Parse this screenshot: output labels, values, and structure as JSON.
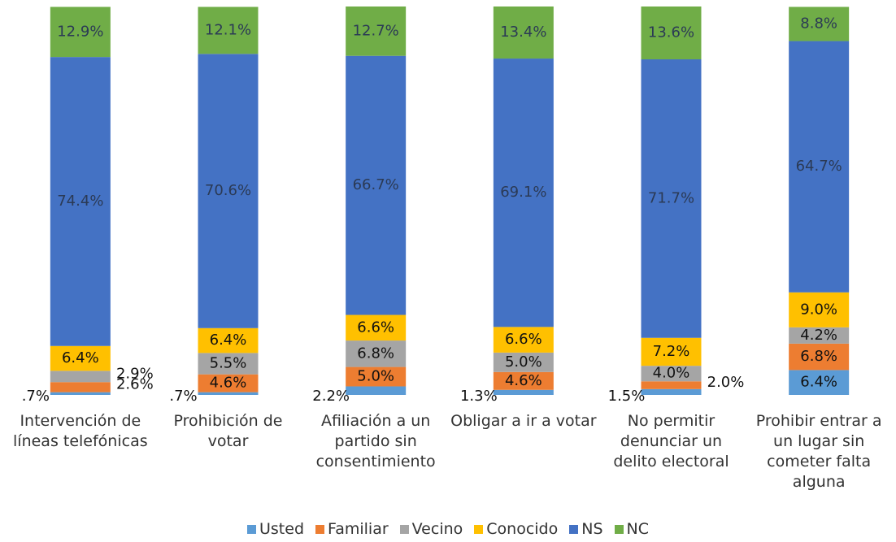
{
  "chart_data": {
    "type": "stacked_bar",
    "categories": [
      "Intervención de líneas telefónicas",
      "Prohibición de votar",
      "Afiliación a un partido sin consentimiento",
      "Obligar a ir a votar",
      "No permitir denunciar un delito electoral",
      "Prohibir entrar a un lugar sin cometer falta alguna"
    ],
    "series": [
      {
        "name": "Usted",
        "color": "#5b9bd5",
        "values": [
          0.7,
          0.7,
          2.2,
          1.3,
          1.5,
          6.4
        ],
        "value_labels": [
          ".7%",
          ".7%",
          "2.2%",
          "1.3%",
          "1.5%",
          "6.4%"
        ]
      },
      {
        "name": "Familiar",
        "color": "#ed7d31",
        "values": [
          2.6,
          4.6,
          5.0,
          4.6,
          2.0,
          6.8
        ],
        "value_labels": [
          "2.6%",
          "4.6%",
          "5.0%",
          "4.6%",
          "2.0%",
          "6.8%"
        ]
      },
      {
        "name": "Vecino",
        "color": "#a5a5a5",
        "values": [
          2.9,
          5.5,
          6.8,
          5.0,
          4.0,
          4.2
        ],
        "value_labels": [
          "2.9%",
          "5.5%",
          "6.8%",
          "5.0%",
          "4.0%",
          "4.2%"
        ]
      },
      {
        "name": "Conocido",
        "color": "#ffc000",
        "values": [
          6.4,
          6.4,
          6.6,
          6.6,
          7.2,
          9.0
        ],
        "value_labels": [
          "6.4%",
          "6.4%",
          "6.6%",
          "6.6%",
          "7.2%",
          "9.0%"
        ]
      },
      {
        "name": "NS",
        "color": "#4472c4",
        "values": [
          74.4,
          70.6,
          66.7,
          69.1,
          71.7,
          64.7
        ],
        "value_labels": [
          "74.4%",
          "70.6%",
          "66.7%",
          "69.1%",
          "71.7%",
          "64.7%"
        ]
      },
      {
        "name": "NC",
        "color": "#70ad47",
        "values": [
          12.9,
          12.1,
          12.7,
          13.4,
          13.6,
          8.8
        ],
        "value_labels": [
          "12.9%",
          "12.1%",
          "12.7%",
          "13.4%",
          "13.6%",
          "8.8%"
        ]
      }
    ],
    "ylim": [
      0,
      100
    ],
    "legend": "bottom"
  }
}
